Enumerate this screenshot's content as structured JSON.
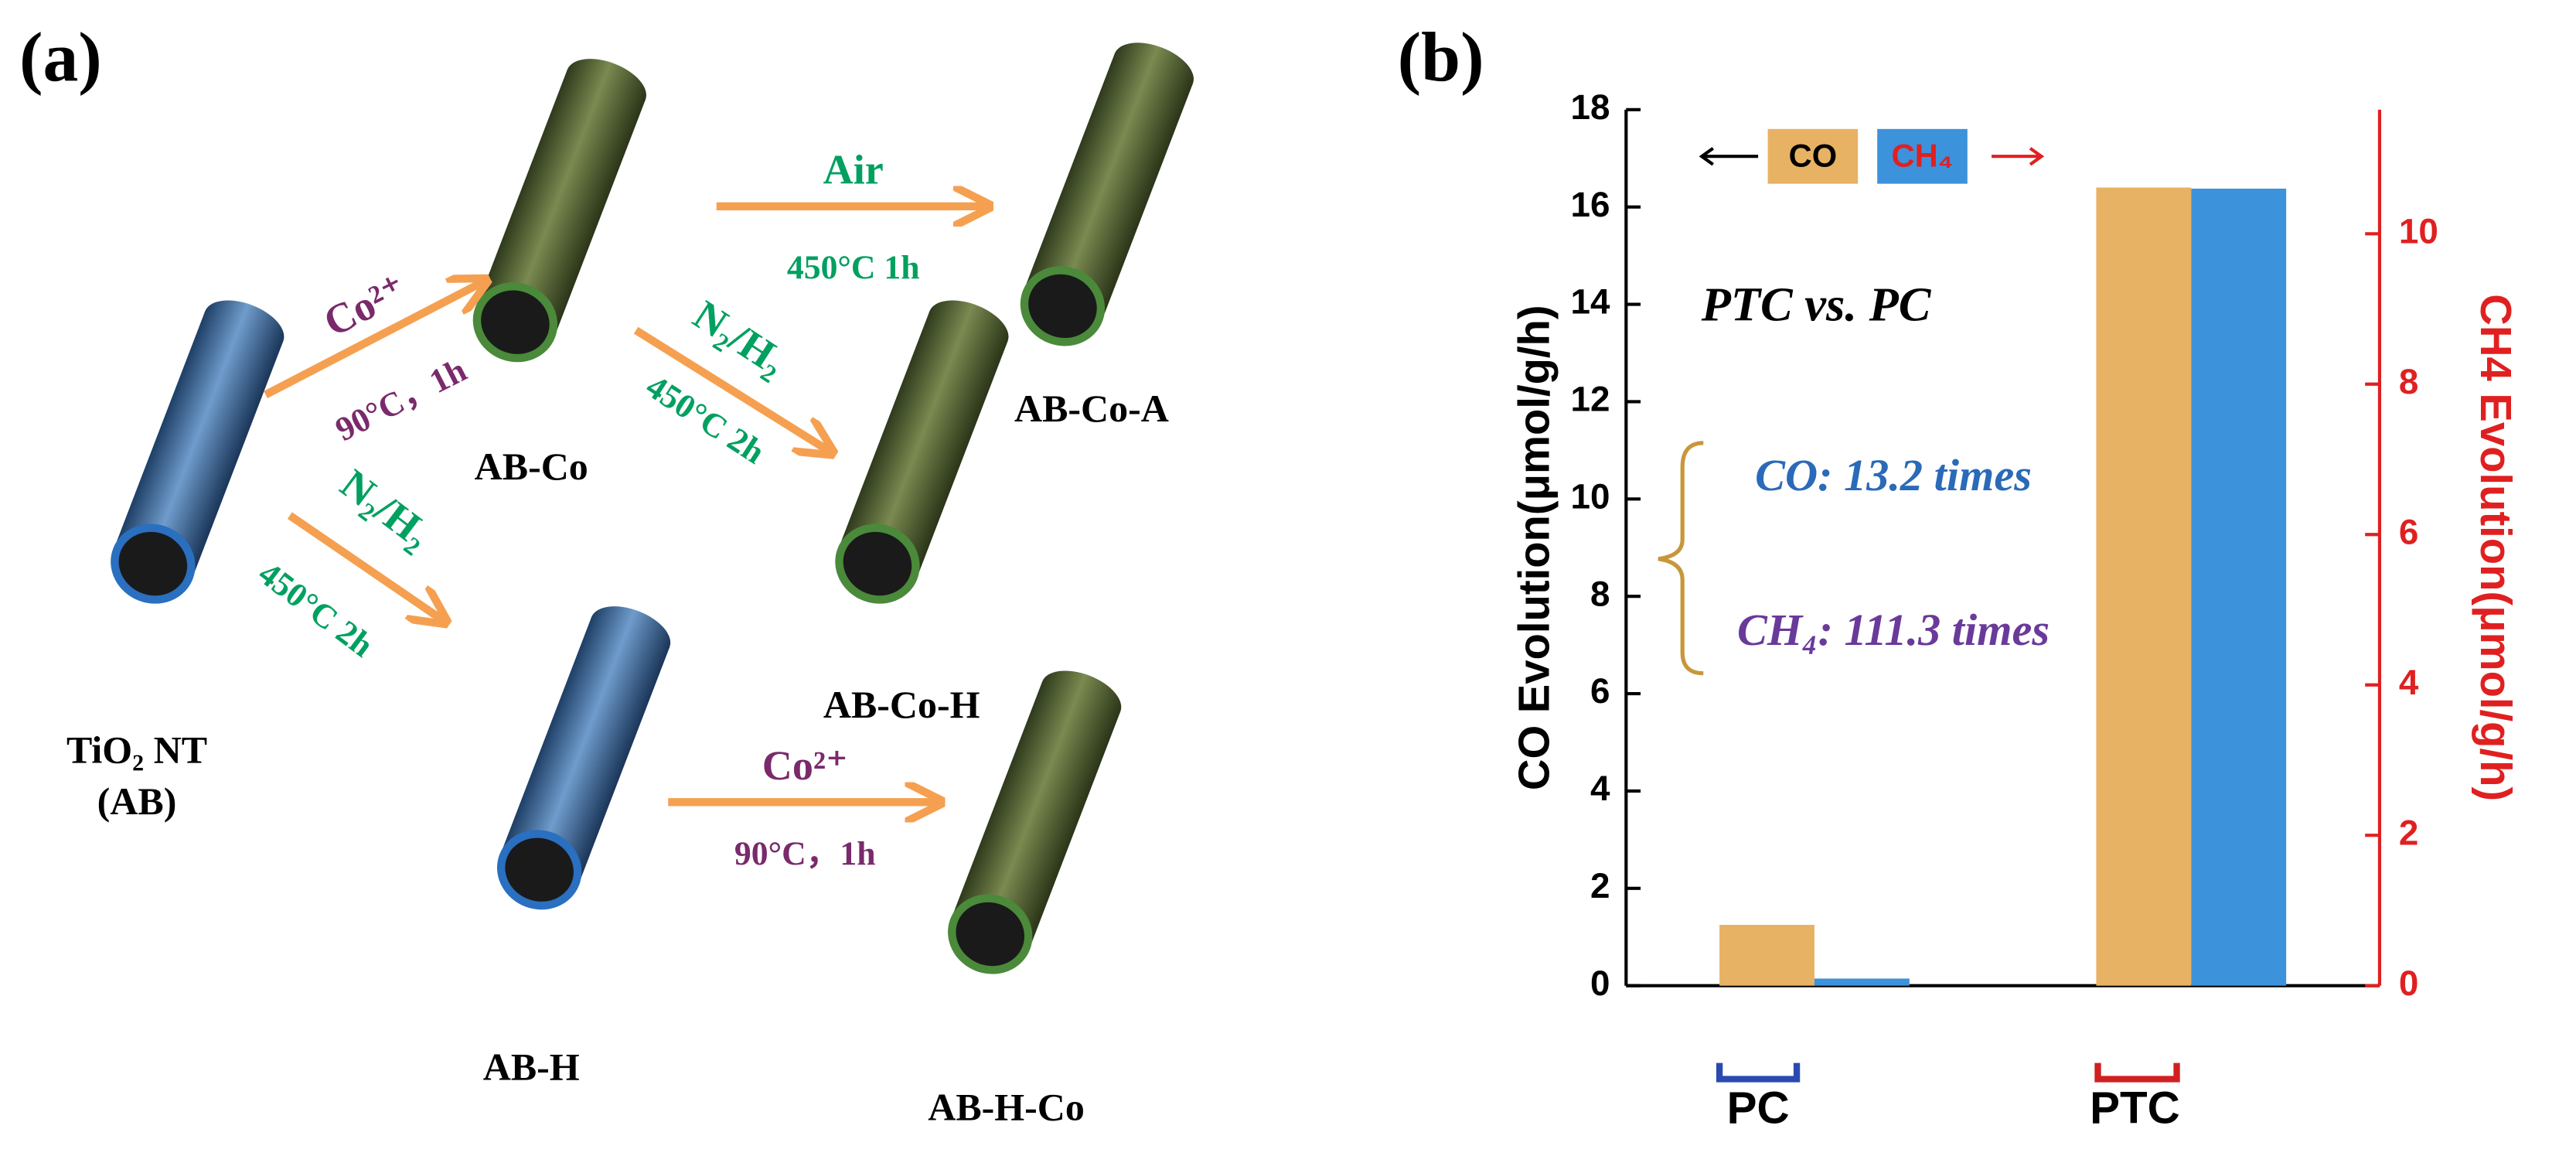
{
  "panel_labels": [
    "(a)",
    "(b)"
  ],
  "diagram": {
    "nodes": [
      {
        "label": "TiO₂ NT",
        "sublabel": "(AB)",
        "color": "blue"
      },
      {
        "label": "AB-Co",
        "color": "green"
      },
      {
        "label": "AB-Co-A",
        "color": "green"
      },
      {
        "label": "AB-Co-H",
        "color": "green"
      },
      {
        "label": "AB-H",
        "color": "blue"
      },
      {
        "label": "AB-H-Co",
        "color": "green"
      }
    ],
    "edges": [
      {
        "from": 0,
        "to": 1,
        "label_top": "Co²⁺",
        "label_bottom": "90°C，1h"
      },
      {
        "from": 1,
        "to": 2,
        "label_top": "Air",
        "label_bottom": "450°C 1h"
      },
      {
        "from": 1,
        "to": 3,
        "label_top": "N₂/H₂",
        "label_bottom": "450°C 2h"
      },
      {
        "from": 0,
        "to": 4,
        "label_top": "N₂/H₂",
        "label_bottom": "450°C 2h"
      },
      {
        "from": 4,
        "to": 5,
        "label_top": "Co²⁺",
        "label_bottom": "90°C，1h"
      }
    ]
  },
  "chart_data": {
    "type": "bar",
    "categories": [
      "PC",
      "PTC"
    ],
    "series": [
      {
        "name": "CO",
        "color": "#e8b264",
        "values": [
          1.25,
          16.4
        ]
      },
      {
        "name": "CH₄",
        "color": "#3d92dc",
        "values": [
          0.095,
          10.6
        ],
        "axis": "y2"
      }
    ],
    "ylabel": "CO Evolution(μmol/g/h)",
    "y2label": "CH4 Evolution(μmol/g/h)",
    "ylim": [
      0,
      18
    ],
    "yticks": [
      0,
      2,
      4,
      6,
      8,
      10,
      12,
      14,
      16,
      18
    ],
    "y2lim": [
      0,
      11.65
    ],
    "y2ticks": [
      0,
      2,
      4,
      6,
      8,
      10
    ],
    "y2color": "#e02020",
    "annotations": [
      "PTC vs. PC",
      "CO: 13.2 times",
      "CH₄: 111.3 times"
    ]
  }
}
